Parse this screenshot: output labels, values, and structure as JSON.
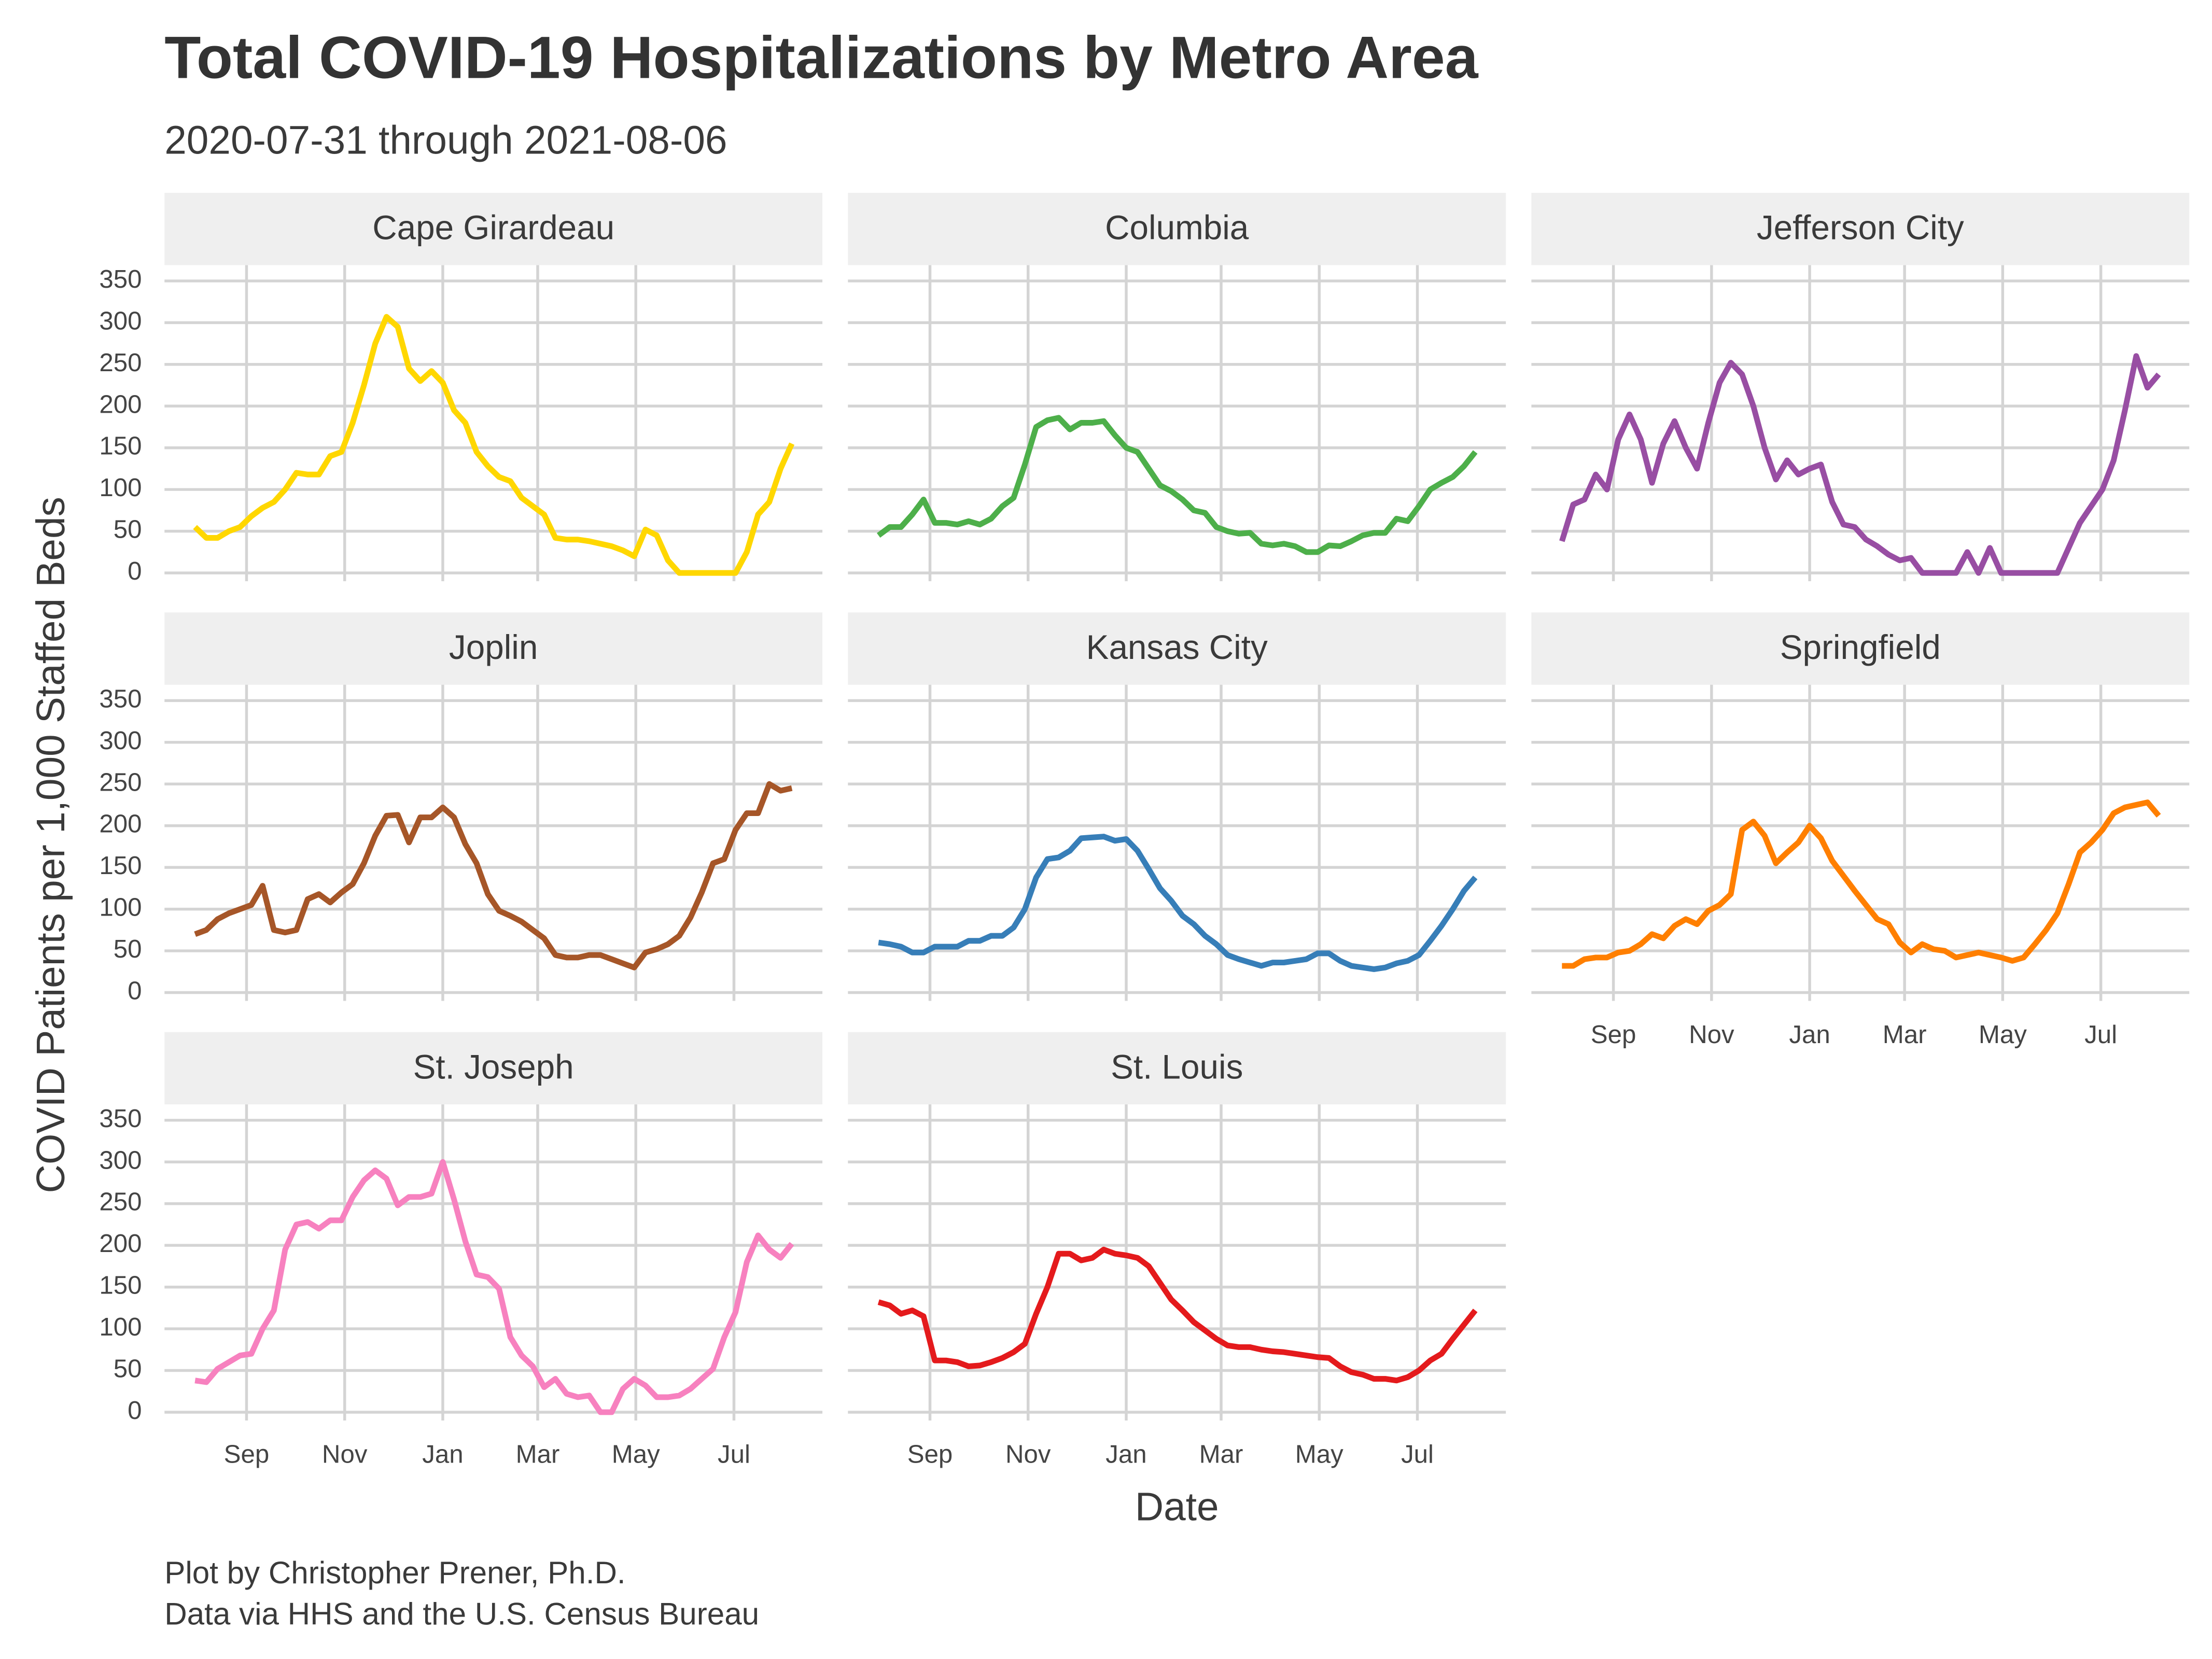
{
  "chart_data": {
    "type": "line",
    "title": "Total COVID-19 Hospitalizations by Metro Area",
    "subtitle": "2020-07-31 through 2021-08-06",
    "x_label": "Date",
    "y_label": "COVID Patients per 1,000 Staffed Beds",
    "caption": [
      "Plot by Christopher Prener, Ph.D.",
      "Data via HHS and the U.S. Census Bureau"
    ],
    "grid": true,
    "x": [
      "2020-07-31",
      "2020-08-07",
      "2020-08-14",
      "2020-08-21",
      "2020-08-28",
      "2020-09-04",
      "2020-09-11",
      "2020-09-18",
      "2020-09-25",
      "2020-10-02",
      "2020-10-09",
      "2020-10-16",
      "2020-10-23",
      "2020-10-30",
      "2020-11-06",
      "2020-11-13",
      "2020-11-20",
      "2020-11-27",
      "2020-12-04",
      "2020-12-11",
      "2020-12-18",
      "2020-12-25",
      "2021-01-01",
      "2021-01-08",
      "2021-01-15",
      "2021-01-22",
      "2021-01-29",
      "2021-02-05",
      "2021-02-12",
      "2021-02-19",
      "2021-02-26",
      "2021-03-05",
      "2021-03-12",
      "2021-03-19",
      "2021-03-26",
      "2021-04-02",
      "2021-04-09",
      "2021-04-16",
      "2021-04-23",
      "2021-04-30",
      "2021-05-07",
      "2021-05-14",
      "2021-05-21",
      "2021-05-28",
      "2021-06-04",
      "2021-06-11",
      "2021-06-18",
      "2021-06-25",
      "2021-07-02",
      "2021-07-09",
      "2021-07-16",
      "2021-07-23",
      "2021-07-30",
      "2021-08-06"
    ],
    "xlim": [
      "2020-07-12",
      "2021-08-25"
    ],
    "xticks": [
      {
        "value": "2020-09-01",
        "label": "Sep"
      },
      {
        "value": "2020-11-01",
        "label": "Nov"
      },
      {
        "value": "2021-01-01",
        "label": "Jan"
      },
      {
        "value": "2021-03-01",
        "label": "Mar"
      },
      {
        "value": "2021-05-01",
        "label": "May"
      },
      {
        "value": "2021-07-01",
        "label": "Jul"
      }
    ],
    "ylim": [
      -10,
      369
    ],
    "yticks": [
      0,
      50,
      100,
      150,
      200,
      250,
      300,
      350
    ],
    "series": [
      {
        "name": "Cape Girardeau",
        "color": "#FFD700",
        "values": [
          55,
          42,
          42,
          50,
          55,
          68,
          78,
          85,
          100,
          120,
          118,
          118,
          140,
          145,
          180,
          225,
          275,
          307,
          295,
          245,
          230,
          242,
          228,
          195,
          180,
          145,
          128,
          115,
          110,
          90,
          80,
          70,
          42,
          40,
          40,
          38,
          35,
          32,
          27,
          20,
          52,
          45,
          15,
          0,
          0,
          0,
          0,
          0,
          0,
          25,
          70,
          85,
          125,
          155
        ]
      },
      {
        "name": "Columbia",
        "color": "#4DAF4A",
        "values": [
          45,
          55,
          55,
          70,
          88,
          60,
          60,
          58,
          62,
          58,
          65,
          80,
          90,
          130,
          175,
          183,
          186,
          172,
          180,
          180,
          182,
          165,
          150,
          145,
          125,
          105,
          98,
          88,
          75,
          72,
          55,
          50,
          47,
          48,
          35,
          33,
          35,
          32,
          25,
          25,
          33,
          32,
          38,
          45,
          48,
          48,
          65,
          62,
          80,
          100,
          108,
          115,
          128,
          145
        ]
      },
      {
        "name": "Jefferson City",
        "color": "#984EA3",
        "values": [
          38,
          82,
          88,
          118,
          100,
          160,
          190,
          160,
          108,
          155,
          182,
          150,
          125,
          180,
          228,
          252,
          238,
          200,
          150,
          112,
          135,
          118,
          125,
          130,
          85,
          58,
          55,
          40,
          32,
          22,
          15,
          18,
          0,
          0,
          0,
          0,
          25,
          0,
          30,
          0,
          0,
          0,
          0,
          0,
          0,
          30,
          60,
          80,
          100,
          135,
          195,
          260,
          222,
          238
        ]
      },
      {
        "name": "Joplin",
        "color": "#A65628",
        "values": [
          70,
          75,
          88,
          95,
          100,
          105,
          128,
          75,
          72,
          75,
          112,
          118,
          108,
          120,
          130,
          155,
          188,
          212,
          213,
          180,
          210,
          210,
          222,
          210,
          178,
          155,
          118,
          98,
          92,
          85,
          75,
          65,
          45,
          42,
          42,
          45,
          45,
          40,
          35,
          30,
          48,
          52,
          58,
          68,
          90,
          120,
          155,
          160,
          195,
          215,
          215,
          250,
          242,
          245
        ]
      },
      {
        "name": "Kansas City",
        "color": "#377EB8",
        "values": [
          60,
          58,
          55,
          48,
          48,
          55,
          55,
          55,
          62,
          62,
          68,
          68,
          78,
          100,
          138,
          160,
          162,
          170,
          185,
          186,
          187,
          182,
          184,
          170,
          148,
          125,
          110,
          92,
          82,
          68,
          58,
          45,
          40,
          36,
          32,
          36,
          36,
          38,
          40,
          47,
          47,
          38,
          32,
          30,
          28,
          30,
          35,
          38,
          45,
          62,
          80,
          100,
          122,
          138
        ]
      },
      {
        "name": "Springfield",
        "color": "#FF7F00",
        "values": [
          32,
          32,
          40,
          42,
          42,
          48,
          50,
          58,
          70,
          65,
          80,
          88,
          82,
          98,
          105,
          118,
          195,
          205,
          188,
          155,
          168,
          180,
          200,
          185,
          158,
          140,
          122,
          105,
          88,
          82,
          60,
          48,
          58,
          52,
          50,
          42,
          45,
          48,
          45,
          42,
          38,
          42,
          58,
          75,
          95,
          130,
          168,
          180,
          195,
          215,
          222,
          225,
          228,
          212
        ]
      },
      {
        "name": "St. Joseph",
        "color": "#F781BF",
        "values": [
          38,
          36,
          52,
          60,
          68,
          70,
          100,
          122,
          195,
          225,
          228,
          220,
          230,
          230,
          258,
          278,
          290,
          280,
          248,
          258,
          258,
          262,
          300,
          255,
          205,
          165,
          162,
          148,
          90,
          68,
          55,
          30,
          40,
          22,
          18,
          20,
          0,
          0,
          28,
          40,
          32,
          18,
          18,
          20,
          28,
          40,
          52,
          90,
          120,
          180,
          212,
          195,
          185,
          202
        ]
      },
      {
        "name": "St. Louis",
        "color": "#E41A1C",
        "values": [
          132,
          128,
          118,
          122,
          115,
          62,
          62,
          60,
          55,
          56,
          60,
          65,
          72,
          82,
          118,
          150,
          190,
          190,
          182,
          185,
          195,
          190,
          188,
          185,
          175,
          155,
          135,
          122,
          108,
          98,
          88,
          80,
          78,
          78,
          75,
          73,
          72,
          70,
          68,
          66,
          65,
          55,
          48,
          45,
          40,
          40,
          38,
          42,
          50,
          62,
          70,
          88,
          105,
          122
        ]
      }
    ]
  }
}
